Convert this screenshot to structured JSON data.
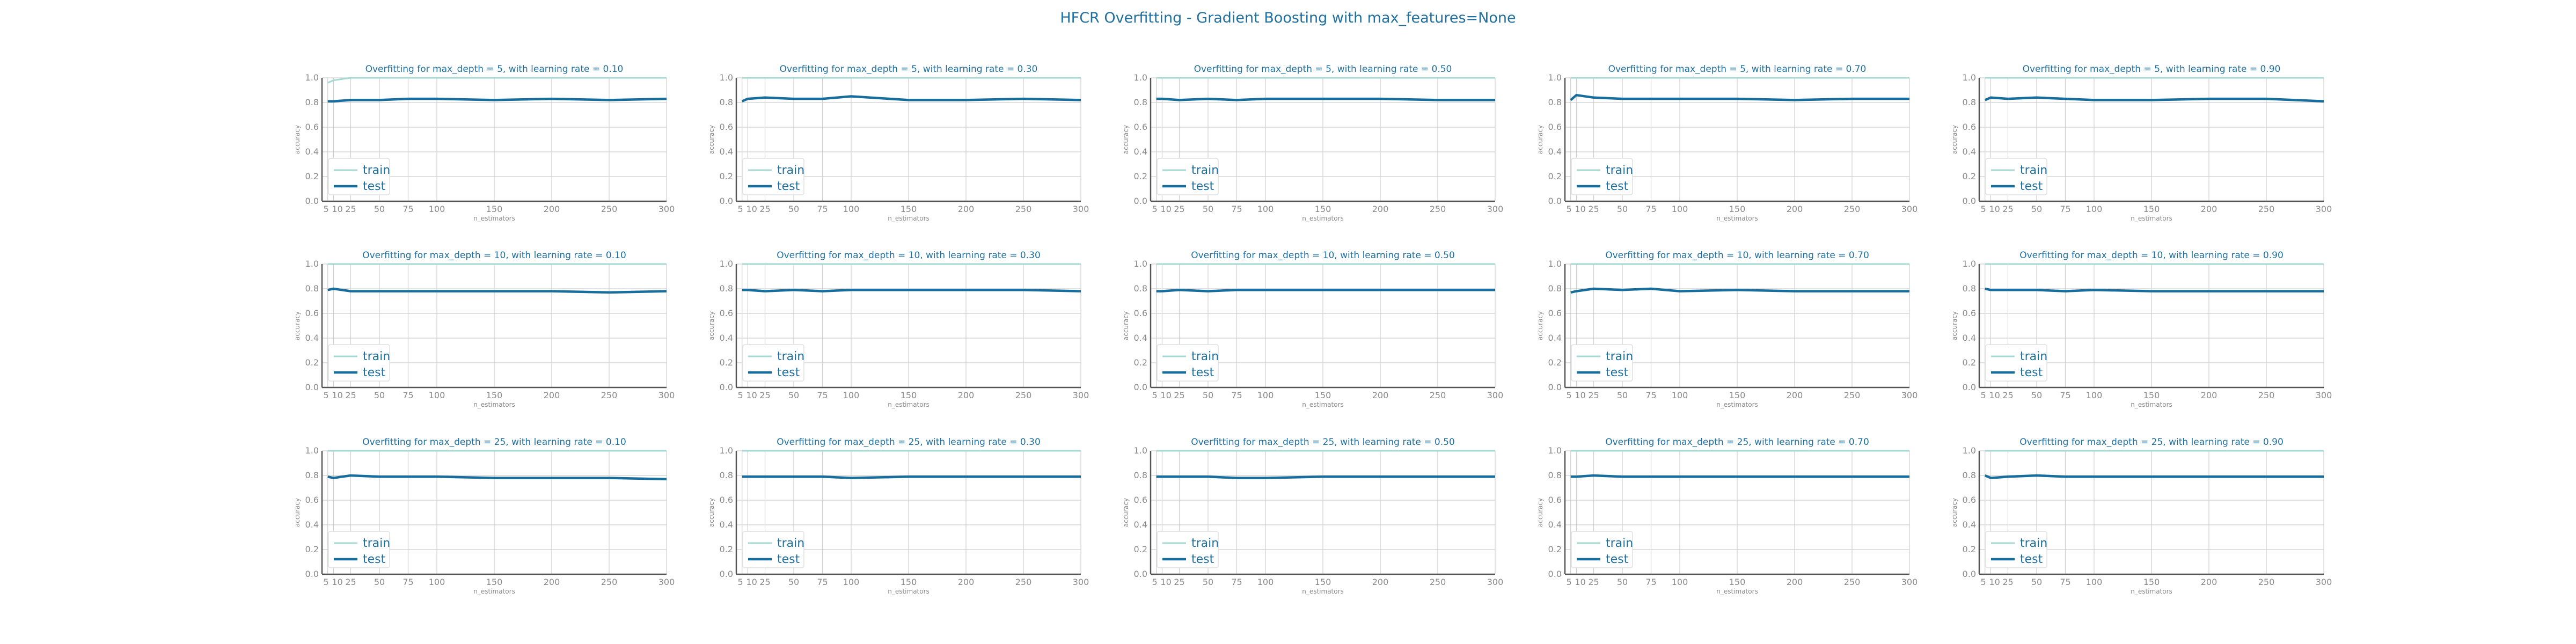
{
  "title": "HFCR Overfitting - Gradient Boosting with max_features=None",
  "colors": {
    "train": "#a7d9d3",
    "test": "#176d9c",
    "text": "#1f6f9f",
    "grid": "#cfcfcf",
    "tick": "#8a8a8a"
  },
  "chart_data": [
    {
      "type": "line",
      "title": "Overfitting for max_depth = 5, with learning rate = 0.10",
      "xlabel": "n_estimators",
      "ylabel": "accuracy",
      "ylim": [
        0,
        1
      ],
      "xticks": [
        5,
        10,
        25,
        50,
        75,
        100,
        150,
        200,
        250,
        300
      ],
      "yticks": [
        0.0,
        0.2,
        0.4,
        0.6,
        0.8,
        1.0
      ],
      "legend_loc": "lower left",
      "grid": true,
      "x": [
        5,
        10,
        25,
        50,
        75,
        100,
        150,
        200,
        250,
        300
      ],
      "series": [
        {
          "name": "train",
          "values": [
            0.96,
            0.98,
            1.0,
            1.0,
            1.0,
            1.0,
            1.0,
            1.0,
            1.0,
            1.0
          ]
        },
        {
          "name": "test",
          "values": [
            0.81,
            0.81,
            0.82,
            0.82,
            0.83,
            0.83,
            0.82,
            0.83,
            0.82,
            0.83
          ]
        }
      ]
    },
    {
      "type": "line",
      "title": "Overfitting for max_depth = 5, with learning rate = 0.30",
      "xlabel": "n_estimators",
      "ylabel": "accuracy",
      "ylim": [
        0,
        1
      ],
      "xticks": [
        5,
        10,
        25,
        50,
        75,
        100,
        150,
        200,
        250,
        300
      ],
      "yticks": [
        0.0,
        0.2,
        0.4,
        0.6,
        0.8,
        1.0
      ],
      "legend_loc": "lower left",
      "grid": true,
      "x": [
        5,
        10,
        25,
        50,
        75,
        100,
        150,
        200,
        250,
        300
      ],
      "series": [
        {
          "name": "train",
          "values": [
            1.0,
            1.0,
            1.0,
            1.0,
            1.0,
            1.0,
            1.0,
            1.0,
            1.0,
            1.0
          ]
        },
        {
          "name": "test",
          "values": [
            0.81,
            0.83,
            0.84,
            0.83,
            0.83,
            0.85,
            0.82,
            0.82,
            0.83,
            0.82
          ]
        }
      ]
    },
    {
      "type": "line",
      "title": "Overfitting for max_depth = 5, with learning rate = 0.50",
      "xlabel": "n_estimators",
      "ylabel": "accuracy",
      "ylim": [
        0,
        1
      ],
      "xticks": [
        5,
        10,
        25,
        50,
        75,
        100,
        150,
        200,
        250,
        300
      ],
      "yticks": [
        0.0,
        0.2,
        0.4,
        0.6,
        0.8,
        1.0
      ],
      "legend_loc": "lower left",
      "grid": true,
      "x": [
        5,
        10,
        25,
        50,
        75,
        100,
        150,
        200,
        250,
        300
      ],
      "series": [
        {
          "name": "train",
          "values": [
            1.0,
            1.0,
            1.0,
            1.0,
            1.0,
            1.0,
            1.0,
            1.0,
            1.0,
            1.0
          ]
        },
        {
          "name": "test",
          "values": [
            0.83,
            0.83,
            0.82,
            0.83,
            0.82,
            0.83,
            0.83,
            0.83,
            0.82,
            0.82
          ]
        }
      ]
    },
    {
      "type": "line",
      "title": "Overfitting for max_depth = 5, with learning rate = 0.70",
      "xlabel": "n_estimators",
      "ylabel": "accuracy",
      "ylim": [
        0,
        1
      ],
      "xticks": [
        5,
        10,
        25,
        50,
        75,
        100,
        150,
        200,
        250,
        300
      ],
      "yticks": [
        0.0,
        0.2,
        0.4,
        0.6,
        0.8,
        1.0
      ],
      "legend_loc": "lower left",
      "grid": true,
      "x": [
        5,
        10,
        25,
        50,
        75,
        100,
        150,
        200,
        250,
        300
      ],
      "series": [
        {
          "name": "train",
          "values": [
            1.0,
            1.0,
            1.0,
            1.0,
            1.0,
            1.0,
            1.0,
            1.0,
            1.0,
            1.0
          ]
        },
        {
          "name": "test",
          "values": [
            0.82,
            0.86,
            0.84,
            0.83,
            0.83,
            0.83,
            0.83,
            0.82,
            0.83,
            0.83
          ]
        }
      ]
    },
    {
      "type": "line",
      "title": "Overfitting for max_depth = 5, with learning rate = 0.90",
      "xlabel": "n_estimators",
      "ylabel": "accuracy",
      "ylim": [
        0,
        1
      ],
      "xticks": [
        5,
        10,
        25,
        50,
        75,
        100,
        150,
        200,
        250,
        300
      ],
      "yticks": [
        0.0,
        0.2,
        0.4,
        0.6,
        0.8,
        1.0
      ],
      "legend_loc": "lower left",
      "grid": true,
      "x": [
        5,
        10,
        25,
        50,
        75,
        100,
        150,
        200,
        250,
        300
      ],
      "series": [
        {
          "name": "train",
          "values": [
            1.0,
            1.0,
            1.0,
            1.0,
            1.0,
            1.0,
            1.0,
            1.0,
            1.0,
            1.0
          ]
        },
        {
          "name": "test",
          "values": [
            0.82,
            0.84,
            0.83,
            0.84,
            0.83,
            0.82,
            0.82,
            0.83,
            0.83,
            0.81
          ]
        }
      ]
    },
    {
      "type": "line",
      "title": "Overfitting for max_depth = 10, with learning rate = 0.10",
      "xlabel": "n_estimators",
      "ylabel": "accuracy",
      "ylim": [
        0,
        1
      ],
      "xticks": [
        5,
        10,
        25,
        50,
        75,
        100,
        150,
        200,
        250,
        300
      ],
      "yticks": [
        0.0,
        0.2,
        0.4,
        0.6,
        0.8,
        1.0
      ],
      "legend_loc": "lower left",
      "grid": true,
      "x": [
        5,
        10,
        25,
        50,
        75,
        100,
        150,
        200,
        250,
        300
      ],
      "series": [
        {
          "name": "train",
          "values": [
            1.0,
            1.0,
            1.0,
            1.0,
            1.0,
            1.0,
            1.0,
            1.0,
            1.0,
            1.0
          ]
        },
        {
          "name": "test",
          "values": [
            0.79,
            0.8,
            0.78,
            0.78,
            0.78,
            0.78,
            0.78,
            0.78,
            0.77,
            0.78
          ]
        }
      ]
    },
    {
      "type": "line",
      "title": "Overfitting for max_depth = 10, with learning rate = 0.30",
      "xlabel": "n_estimators",
      "ylabel": "accuracy",
      "ylim": [
        0,
        1
      ],
      "xticks": [
        5,
        10,
        25,
        50,
        75,
        100,
        150,
        200,
        250,
        300
      ],
      "yticks": [
        0.0,
        0.2,
        0.4,
        0.6,
        0.8,
        1.0
      ],
      "legend_loc": "lower left",
      "grid": true,
      "x": [
        5,
        10,
        25,
        50,
        75,
        100,
        150,
        200,
        250,
        300
      ],
      "series": [
        {
          "name": "train",
          "values": [
            1.0,
            1.0,
            1.0,
            1.0,
            1.0,
            1.0,
            1.0,
            1.0,
            1.0,
            1.0
          ]
        },
        {
          "name": "test",
          "values": [
            0.79,
            0.79,
            0.78,
            0.79,
            0.78,
            0.79,
            0.79,
            0.79,
            0.79,
            0.78
          ]
        }
      ]
    },
    {
      "type": "line",
      "title": "Overfitting for max_depth = 10, with learning rate = 0.50",
      "xlabel": "n_estimators",
      "ylabel": "accuracy",
      "ylim": [
        0,
        1
      ],
      "xticks": [
        5,
        10,
        25,
        50,
        75,
        100,
        150,
        200,
        250,
        300
      ],
      "yticks": [
        0.0,
        0.2,
        0.4,
        0.6,
        0.8,
        1.0
      ],
      "legend_loc": "lower left",
      "grid": true,
      "x": [
        5,
        10,
        25,
        50,
        75,
        100,
        150,
        200,
        250,
        300
      ],
      "series": [
        {
          "name": "train",
          "values": [
            1.0,
            1.0,
            1.0,
            1.0,
            1.0,
            1.0,
            1.0,
            1.0,
            1.0,
            1.0
          ]
        },
        {
          "name": "test",
          "values": [
            0.78,
            0.78,
            0.79,
            0.78,
            0.79,
            0.79,
            0.79,
            0.79,
            0.79,
            0.79
          ]
        }
      ]
    },
    {
      "type": "line",
      "title": "Overfitting for max_depth = 10, with learning rate = 0.70",
      "xlabel": "n_estimators",
      "ylabel": "accuracy",
      "ylim": [
        0,
        1
      ],
      "xticks": [
        5,
        10,
        25,
        50,
        75,
        100,
        150,
        200,
        250,
        300
      ],
      "yticks": [
        0.0,
        0.2,
        0.4,
        0.6,
        0.8,
        1.0
      ],
      "legend_loc": "lower left",
      "grid": true,
      "x": [
        5,
        10,
        25,
        50,
        75,
        100,
        150,
        200,
        250,
        300
      ],
      "series": [
        {
          "name": "train",
          "values": [
            1.0,
            1.0,
            1.0,
            1.0,
            1.0,
            1.0,
            1.0,
            1.0,
            1.0,
            1.0
          ]
        },
        {
          "name": "test",
          "values": [
            0.77,
            0.78,
            0.8,
            0.79,
            0.8,
            0.78,
            0.79,
            0.78,
            0.78,
            0.78
          ]
        }
      ]
    },
    {
      "type": "line",
      "title": "Overfitting for max_depth = 10, with learning rate = 0.90",
      "xlabel": "n_estimators",
      "ylabel": "accuracy",
      "ylim": [
        0,
        1
      ],
      "xticks": [
        5,
        10,
        25,
        50,
        75,
        100,
        150,
        200,
        250,
        300
      ],
      "yticks": [
        0.0,
        0.2,
        0.4,
        0.6,
        0.8,
        1.0
      ],
      "legend_loc": "lower left",
      "grid": true,
      "x": [
        5,
        10,
        25,
        50,
        75,
        100,
        150,
        200,
        250,
        300
      ],
      "series": [
        {
          "name": "train",
          "values": [
            1.0,
            1.0,
            1.0,
            1.0,
            1.0,
            1.0,
            1.0,
            1.0,
            1.0,
            1.0
          ]
        },
        {
          "name": "test",
          "values": [
            0.8,
            0.79,
            0.79,
            0.79,
            0.78,
            0.79,
            0.78,
            0.78,
            0.78,
            0.78
          ]
        }
      ]
    },
    {
      "type": "line",
      "title": "Overfitting for max_depth = 25, with learning rate = 0.10",
      "xlabel": "n_estimators",
      "ylabel": "accuracy",
      "ylim": [
        0,
        1
      ],
      "xticks": [
        5,
        10,
        25,
        50,
        75,
        100,
        150,
        200,
        250,
        300
      ],
      "yticks": [
        0.0,
        0.2,
        0.4,
        0.6,
        0.8,
        1.0
      ],
      "legend_loc": "lower left",
      "grid": true,
      "x": [
        5,
        10,
        25,
        50,
        75,
        100,
        150,
        200,
        250,
        300
      ],
      "series": [
        {
          "name": "train",
          "values": [
            1.0,
            1.0,
            1.0,
            1.0,
            1.0,
            1.0,
            1.0,
            1.0,
            1.0,
            1.0
          ]
        },
        {
          "name": "test",
          "values": [
            0.79,
            0.78,
            0.8,
            0.79,
            0.79,
            0.79,
            0.78,
            0.78,
            0.78,
            0.77
          ]
        }
      ]
    },
    {
      "type": "line",
      "title": "Overfitting for max_depth = 25, with learning rate = 0.30",
      "xlabel": "n_estimators",
      "ylabel": "accuracy",
      "ylim": [
        0,
        1
      ],
      "xticks": [
        5,
        10,
        25,
        50,
        75,
        100,
        150,
        200,
        250,
        300
      ],
      "yticks": [
        0.0,
        0.2,
        0.4,
        0.6,
        0.8,
        1.0
      ],
      "legend_loc": "lower left",
      "grid": true,
      "x": [
        5,
        10,
        25,
        50,
        75,
        100,
        150,
        200,
        250,
        300
      ],
      "series": [
        {
          "name": "train",
          "values": [
            1.0,
            1.0,
            1.0,
            1.0,
            1.0,
            1.0,
            1.0,
            1.0,
            1.0,
            1.0
          ]
        },
        {
          "name": "test",
          "values": [
            0.79,
            0.79,
            0.79,
            0.79,
            0.79,
            0.78,
            0.79,
            0.79,
            0.79,
            0.79
          ]
        }
      ]
    },
    {
      "type": "line",
      "title": "Overfitting for max_depth = 25, with learning rate = 0.50",
      "xlabel": "n_estimators",
      "ylabel": "accuracy",
      "ylim": [
        0,
        1
      ],
      "xticks": [
        5,
        10,
        25,
        50,
        75,
        100,
        150,
        200,
        250,
        300
      ],
      "yticks": [
        0.0,
        0.2,
        0.4,
        0.6,
        0.8,
        1.0
      ],
      "legend_loc": "lower left",
      "grid": true,
      "x": [
        5,
        10,
        25,
        50,
        75,
        100,
        150,
        200,
        250,
        300
      ],
      "series": [
        {
          "name": "train",
          "values": [
            1.0,
            1.0,
            1.0,
            1.0,
            1.0,
            1.0,
            1.0,
            1.0,
            1.0,
            1.0
          ]
        },
        {
          "name": "test",
          "values": [
            0.79,
            0.79,
            0.79,
            0.79,
            0.78,
            0.78,
            0.79,
            0.79,
            0.79,
            0.79
          ]
        }
      ]
    },
    {
      "type": "line",
      "title": "Overfitting for max_depth = 25, with learning rate = 0.70",
      "xlabel": "n_estimators",
      "ylabel": "accuracy",
      "ylim": [
        0,
        1
      ],
      "xticks": [
        5,
        10,
        25,
        50,
        75,
        100,
        150,
        200,
        250,
        300
      ],
      "yticks": [
        0.0,
        0.2,
        0.4,
        0.6,
        0.8,
        1.0
      ],
      "legend_loc": "lower left",
      "grid": true,
      "x": [
        5,
        10,
        25,
        50,
        75,
        100,
        150,
        200,
        250,
        300
      ],
      "series": [
        {
          "name": "train",
          "values": [
            1.0,
            1.0,
            1.0,
            1.0,
            1.0,
            1.0,
            1.0,
            1.0,
            1.0,
            1.0
          ]
        },
        {
          "name": "test",
          "values": [
            0.79,
            0.79,
            0.8,
            0.79,
            0.79,
            0.79,
            0.79,
            0.79,
            0.79,
            0.79
          ]
        }
      ]
    },
    {
      "type": "line",
      "title": "Overfitting for max_depth = 25, with learning rate = 0.90",
      "xlabel": "n_estimators",
      "ylabel": "accuracy",
      "ylim": [
        0,
        1
      ],
      "xticks": [
        5,
        10,
        25,
        50,
        75,
        100,
        150,
        200,
        250,
        300
      ],
      "yticks": [
        0.0,
        0.2,
        0.4,
        0.6,
        0.8,
        1.0
      ],
      "legend_loc": "lower left",
      "grid": true,
      "x": [
        5,
        10,
        25,
        50,
        75,
        100,
        150,
        200,
        250,
        300
      ],
      "series": [
        {
          "name": "train",
          "values": [
            1.0,
            1.0,
            1.0,
            1.0,
            1.0,
            1.0,
            1.0,
            1.0,
            1.0,
            1.0
          ]
        },
        {
          "name": "test",
          "values": [
            0.8,
            0.78,
            0.79,
            0.8,
            0.79,
            0.79,
            0.79,
            0.79,
            0.79,
            0.79
          ]
        }
      ]
    }
  ]
}
